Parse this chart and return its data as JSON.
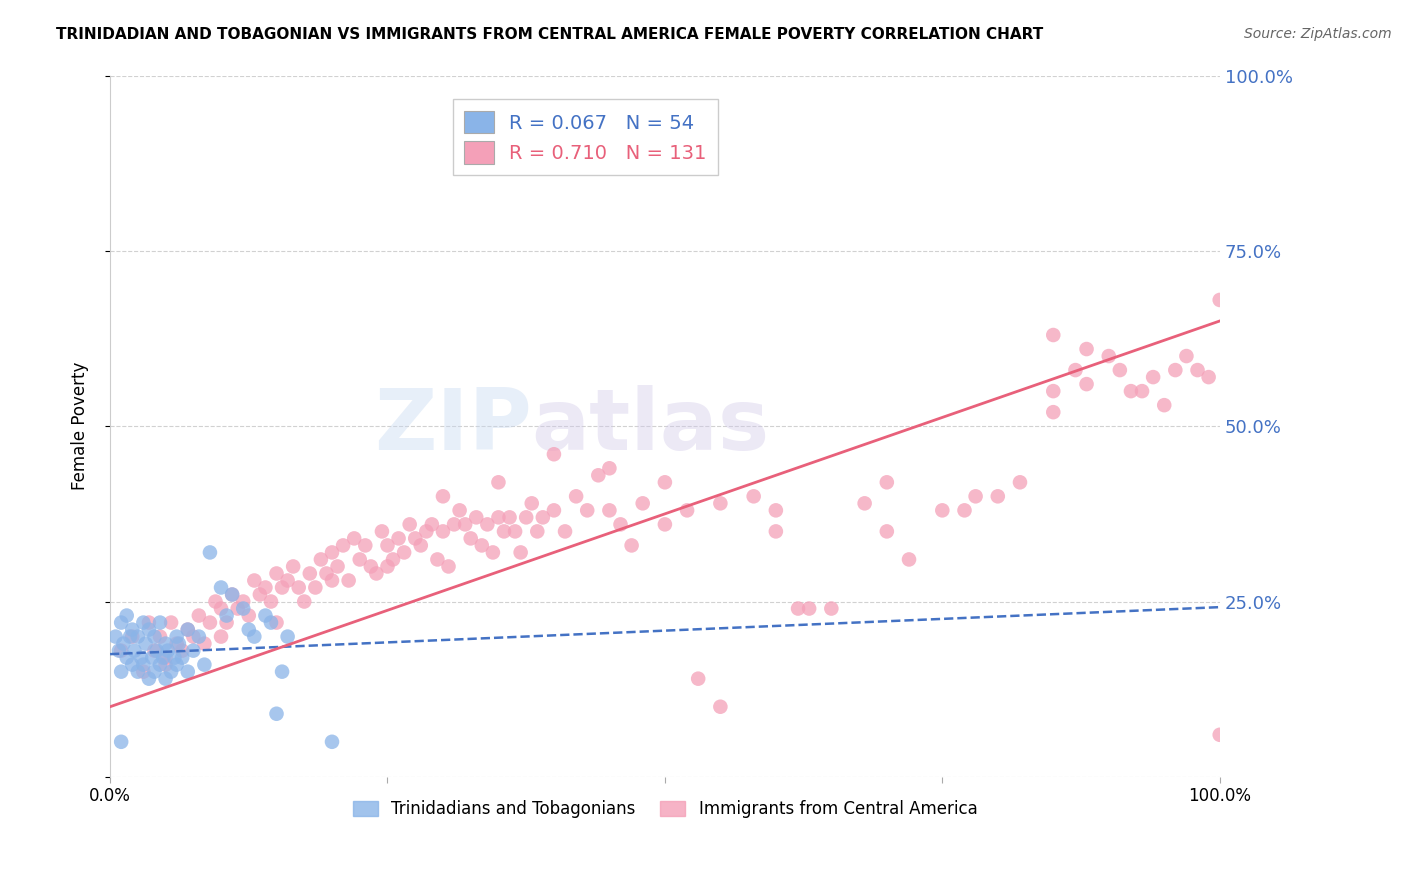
{
  "title": "TRINIDADIAN AND TOBAGONIAN VS IMMIGRANTS FROM CENTRAL AMERICA FEMALE POVERTY CORRELATION CHART",
  "source": "Source: ZipAtlas.com",
  "ylabel": "Female Poverty",
  "legend_blue_r": "0.067",
  "legend_blue_n": "54",
  "legend_pink_r": "0.710",
  "legend_pink_n": "131",
  "blue_color": "#8ab4e8",
  "pink_color": "#f4a0b8",
  "blue_line_color": "#4472c4",
  "pink_line_color": "#e8607a",
  "watermark_zip": "ZIP",
  "watermark_atlas": "atlas",
  "blue_scatter": [
    [
      0.5,
      20
    ],
    [
      0.8,
      18
    ],
    [
      1.0,
      15
    ],
    [
      1.0,
      22
    ],
    [
      1.2,
      19
    ],
    [
      1.5,
      17
    ],
    [
      1.5,
      23
    ],
    [
      1.8,
      20
    ],
    [
      2.0,
      16
    ],
    [
      2.0,
      21
    ],
    [
      2.2,
      18
    ],
    [
      2.5,
      15
    ],
    [
      2.5,
      20
    ],
    [
      2.8,
      17
    ],
    [
      3.0,
      22
    ],
    [
      3.0,
      16
    ],
    [
      3.2,
      19
    ],
    [
      3.5,
      14
    ],
    [
      3.5,
      21
    ],
    [
      3.8,
      17
    ],
    [
      4.0,
      15
    ],
    [
      4.0,
      20
    ],
    [
      4.2,
      18
    ],
    [
      4.5,
      16
    ],
    [
      4.5,
      22
    ],
    [
      4.8,
      17
    ],
    [
      5.0,
      19
    ],
    [
      5.0,
      14
    ],
    [
      5.2,
      18
    ],
    [
      5.5,
      15
    ],
    [
      5.8,
      17
    ],
    [
      6.0,
      20
    ],
    [
      6.0,
      16
    ],
    [
      6.2,
      19
    ],
    [
      6.5,
      17
    ],
    [
      7.0,
      21
    ],
    [
      7.0,
      15
    ],
    [
      7.5,
      18
    ],
    [
      8.0,
      20
    ],
    [
      8.5,
      16
    ],
    [
      9.0,
      32
    ],
    [
      10.0,
      27
    ],
    [
      10.5,
      23
    ],
    [
      11.0,
      26
    ],
    [
      12.0,
      24
    ],
    [
      12.5,
      21
    ],
    [
      13.0,
      20
    ],
    [
      14.0,
      23
    ],
    [
      14.5,
      22
    ],
    [
      15.0,
      9
    ],
    [
      15.5,
      15
    ],
    [
      16.0,
      20
    ],
    [
      20.0,
      5
    ],
    [
      1.0,
      5
    ]
  ],
  "pink_scatter": [
    [
      1.0,
      18
    ],
    [
      2.0,
      20
    ],
    [
      3.0,
      15
    ],
    [
      3.5,
      22
    ],
    [
      4.0,
      18
    ],
    [
      4.5,
      20
    ],
    [
      5.0,
      16
    ],
    [
      5.5,
      22
    ],
    [
      6.0,
      19
    ],
    [
      6.5,
      18
    ],
    [
      7.0,
      21
    ],
    [
      7.5,
      20
    ],
    [
      8.0,
      23
    ],
    [
      8.5,
      19
    ],
    [
      9.0,
      22
    ],
    [
      9.5,
      25
    ],
    [
      10.0,
      24
    ],
    [
      10.5,
      22
    ],
    [
      11.0,
      26
    ],
    [
      11.5,
      24
    ],
    [
      12.0,
      25
    ],
    [
      12.5,
      23
    ],
    [
      13.0,
      28
    ],
    [
      13.5,
      26
    ],
    [
      14.0,
      27
    ],
    [
      14.5,
      25
    ],
    [
      15.0,
      29
    ],
    [
      15.5,
      27
    ],
    [
      16.0,
      28
    ],
    [
      16.5,
      30
    ],
    [
      17.0,
      27
    ],
    [
      17.5,
      25
    ],
    [
      18.0,
      29
    ],
    [
      18.5,
      27
    ],
    [
      19.0,
      31
    ],
    [
      19.5,
      29
    ],
    [
      20.0,
      32
    ],
    [
      20.5,
      30
    ],
    [
      21.0,
      33
    ],
    [
      21.5,
      28
    ],
    [
      22.0,
      34
    ],
    [
      22.5,
      31
    ],
    [
      23.0,
      33
    ],
    [
      23.5,
      30
    ],
    [
      24.0,
      29
    ],
    [
      24.5,
      35
    ],
    [
      25.0,
      33
    ],
    [
      25.5,
      31
    ],
    [
      26.0,
      34
    ],
    [
      26.5,
      32
    ],
    [
      27.0,
      36
    ],
    [
      27.5,
      34
    ],
    [
      28.0,
      33
    ],
    [
      28.5,
      35
    ],
    [
      29.0,
      36
    ],
    [
      29.5,
      31
    ],
    [
      30.0,
      35
    ],
    [
      30.5,
      30
    ],
    [
      31.0,
      36
    ],
    [
      31.5,
      38
    ],
    [
      32.0,
      36
    ],
    [
      32.5,
      34
    ],
    [
      33.0,
      37
    ],
    [
      33.5,
      33
    ],
    [
      34.0,
      36
    ],
    [
      34.5,
      32
    ],
    [
      35.0,
      37
    ],
    [
      35.5,
      35
    ],
    [
      36.0,
      37
    ],
    [
      36.5,
      35
    ],
    [
      37.0,
      32
    ],
    [
      37.5,
      37
    ],
    [
      38.0,
      39
    ],
    [
      38.5,
      35
    ],
    [
      39.0,
      37
    ],
    [
      40.0,
      38
    ],
    [
      41.0,
      35
    ],
    [
      42.0,
      40
    ],
    [
      43.0,
      38
    ],
    [
      44.0,
      43
    ],
    [
      45.0,
      38
    ],
    [
      46.0,
      36
    ],
    [
      47.0,
      33
    ],
    [
      48.0,
      39
    ],
    [
      50.0,
      42
    ],
    [
      52.0,
      38
    ],
    [
      53.0,
      14
    ],
    [
      55.0,
      10
    ],
    [
      55.0,
      39
    ],
    [
      58.0,
      40
    ],
    [
      60.0,
      38
    ],
    [
      62.0,
      24
    ],
    [
      63.0,
      24
    ],
    [
      65.0,
      24
    ],
    [
      68.0,
      39
    ],
    [
      70.0,
      42
    ],
    [
      72.0,
      31
    ],
    [
      75.0,
      38
    ],
    [
      77.0,
      38
    ],
    [
      78.0,
      40
    ],
    [
      80.0,
      40
    ],
    [
      82.0,
      42
    ],
    [
      85.0,
      52
    ],
    [
      85.0,
      55
    ],
    [
      87.0,
      58
    ],
    [
      88.0,
      56
    ],
    [
      90.0,
      60
    ],
    [
      91.0,
      58
    ],
    [
      92.0,
      55
    ],
    [
      93.0,
      55
    ],
    [
      94.0,
      57
    ],
    [
      95.0,
      53
    ],
    [
      96.0,
      58
    ],
    [
      97.0,
      60
    ],
    [
      98.0,
      58
    ],
    [
      99.0,
      57
    ],
    [
      100.0,
      68
    ],
    [
      100.0,
      6
    ],
    [
      85.0,
      63
    ],
    [
      88.0,
      61
    ],
    [
      70.0,
      35
    ],
    [
      60.0,
      35
    ],
    [
      50.0,
      36
    ],
    [
      45.0,
      44
    ],
    [
      40.0,
      46
    ],
    [
      35.0,
      42
    ],
    [
      30.0,
      40
    ],
    [
      25.0,
      30
    ],
    [
      20.0,
      28
    ],
    [
      15.0,
      22
    ],
    [
      10.0,
      20
    ],
    [
      5.0,
      17
    ]
  ],
  "blue_trend_x": [
    0,
    100
  ],
  "blue_trend_y": [
    17.5,
    24.2
  ],
  "pink_trend_x": [
    0,
    100
  ],
  "pink_trend_y": [
    10.0,
    65.0
  ],
  "xmin": 0,
  "xmax": 100,
  "ymin": 0,
  "ymax": 100
}
